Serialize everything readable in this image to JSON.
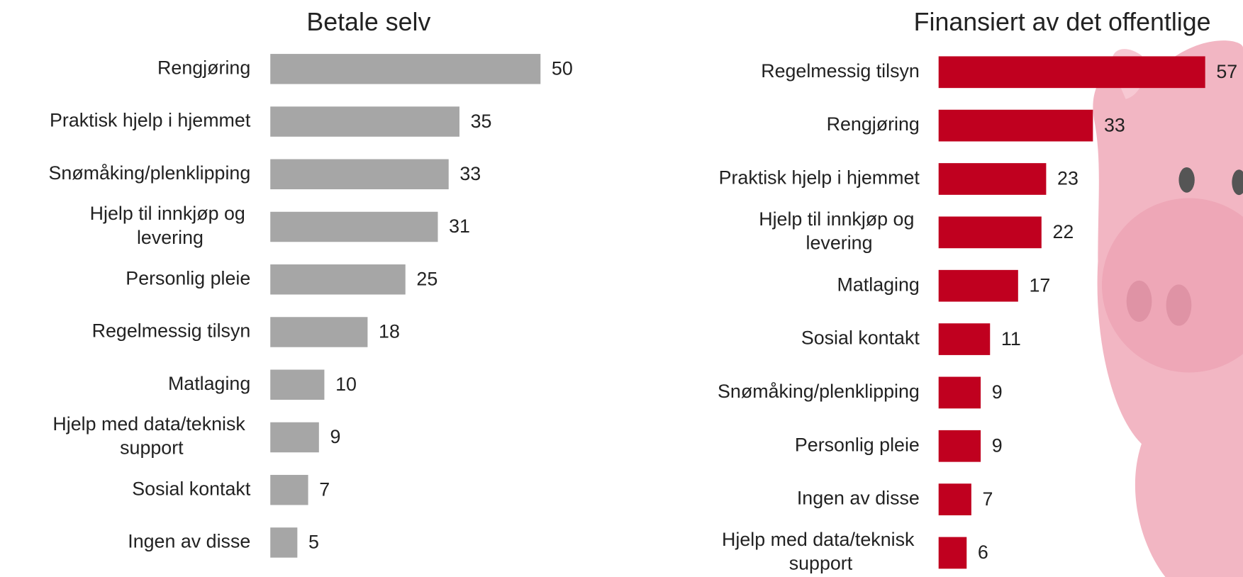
{
  "chart_data": [
    {
      "type": "bar",
      "orientation": "horizontal",
      "title": "Betale selv",
      "color": "#a6a6a6",
      "categories": [
        "Rengjøring",
        "Praktisk hjelp i hjemmet",
        "Snømåking/plenklipping",
        "Hjelp til innkjøp og levering",
        "Personlig pleie",
        "Regelmessig tilsyn",
        "Matlaging",
        "Hjelp med data/teknisk support",
        "Sosial kontakt",
        "Ingen av disse"
      ],
      "values": [
        50,
        35,
        33,
        31,
        25,
        18,
        10,
        9,
        7,
        5
      ],
      "xlim": [
        0,
        60
      ]
    },
    {
      "type": "bar",
      "orientation": "horizontal",
      "title": "Finansiert av det offentlige",
      "color": "#c0001f",
      "categories": [
        "Regelmessig tilsyn",
        "Rengjøring",
        "Praktisk hjelp i hjemmet",
        "Hjelp til innkjøp og levering",
        "Matlaging",
        "Sosial kontakt",
        "Snømåking/plenklipping",
        "Personlig pleie",
        "Ingen av disse",
        "Hjelp med data/teknisk support"
      ],
      "values": [
        57,
        33,
        23,
        22,
        17,
        11,
        9,
        9,
        7,
        6
      ],
      "xlim": [
        0,
        60
      ]
    }
  ]
}
